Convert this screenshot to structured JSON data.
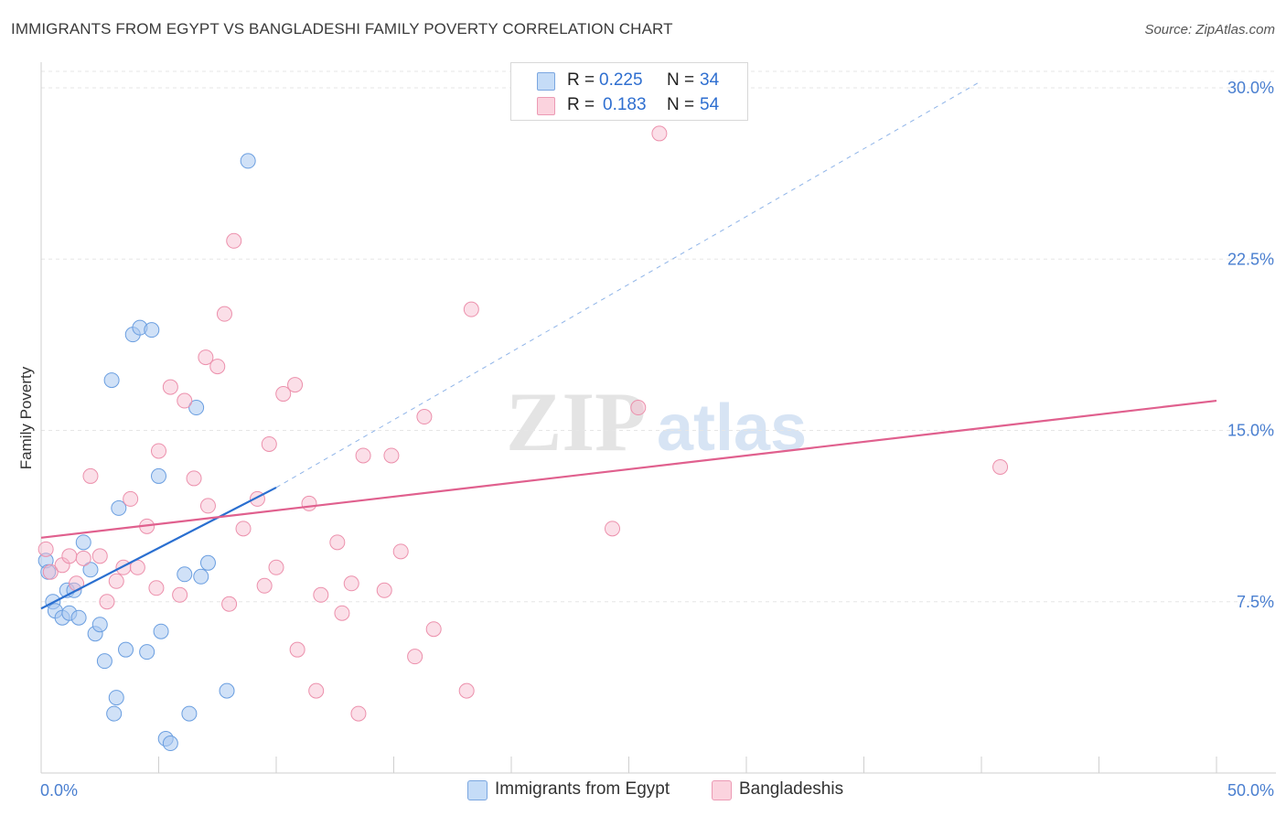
{
  "header": {
    "title": "IMMIGRANTS FROM EGYPT VS BANGLADESHI FAMILY POVERTY CORRELATION CHART",
    "source": "Source: ZipAtlas.com"
  },
  "watermark": {
    "zip": "ZIP",
    "atlas": "atlas"
  },
  "legend": {
    "r_label": "R =",
    "n_label": "N =",
    "rows": [
      {
        "r": "0.225",
        "n": "34",
        "color": "#a9c8f0"
      },
      {
        "r": "0.183",
        "n": "54",
        "color": "#f6b8cb"
      }
    ]
  },
  "chart_data": {
    "type": "scatter",
    "title": "IMMIGRANTS FROM EGYPT VS BANGLADESHI FAMILY POVERTY CORRELATION CHART",
    "xlabel": "",
    "ylabel": "Family Poverty",
    "xlim": [
      0,
      50
    ],
    "ylim": [
      0,
      30
    ],
    "x_tick_labels": [
      "0.0%",
      "50.0%"
    ],
    "y_ticks": [
      7.5,
      15.0,
      22.5,
      30.0
    ],
    "y_tick_labels": [
      "7.5%",
      "15.0%",
      "22.5%",
      "30.0%"
    ],
    "series": [
      {
        "name": "Immigrants from Egypt",
        "color": "#a9c8f0",
        "stroke": "#6a9ee0",
        "line_color": "#2a6fd0",
        "trend": {
          "x": [
            0,
            10
          ],
          "y": [
            7.2,
            12.5
          ],
          "dashed_to": [
            40,
            30.3
          ]
        },
        "points": [
          [
            0.2,
            9.3
          ],
          [
            0.3,
            8.8
          ],
          [
            0.5,
            7.5
          ],
          [
            0.6,
            7.1
          ],
          [
            0.9,
            6.8
          ],
          [
            1.1,
            8.0
          ],
          [
            1.2,
            7.0
          ],
          [
            1.4,
            8.0
          ],
          [
            1.6,
            6.8
          ],
          [
            1.8,
            10.1
          ],
          [
            2.1,
            8.9
          ],
          [
            2.3,
            6.1
          ],
          [
            2.5,
            6.5
          ],
          [
            2.7,
            4.9
          ],
          [
            3.0,
            17.2
          ],
          [
            3.1,
            2.6
          ],
          [
            3.2,
            3.3
          ],
          [
            3.3,
            11.6
          ],
          [
            3.6,
            5.4
          ],
          [
            3.9,
            19.2
          ],
          [
            4.2,
            19.5
          ],
          [
            4.5,
            5.3
          ],
          [
            4.7,
            19.4
          ],
          [
            5.0,
            13.0
          ],
          [
            5.1,
            6.2
          ],
          [
            5.3,
            1.5
          ],
          [
            5.5,
            1.3
          ],
          [
            6.1,
            8.7
          ],
          [
            6.3,
            2.6
          ],
          [
            6.6,
            16.0
          ],
          [
            6.8,
            8.6
          ],
          [
            7.1,
            9.2
          ],
          [
            7.9,
            3.6
          ],
          [
            8.8,
            26.8
          ]
        ]
      },
      {
        "name": "Bangladeshis",
        "color": "#f6b8cb",
        "stroke": "#ec90ac",
        "line_color": "#e0608e",
        "trend": {
          "x": [
            0,
            50
          ],
          "y": [
            10.3,
            16.3
          ]
        },
        "points": [
          [
            0.2,
            9.8
          ],
          [
            0.4,
            8.8
          ],
          [
            0.9,
            9.1
          ],
          [
            1.2,
            9.5
          ],
          [
            1.5,
            8.3
          ],
          [
            1.8,
            9.4
          ],
          [
            2.1,
            13.0
          ],
          [
            2.5,
            9.5
          ],
          [
            2.8,
            7.5
          ],
          [
            3.2,
            8.4
          ],
          [
            3.5,
            9.0
          ],
          [
            3.8,
            12.0
          ],
          [
            4.1,
            9.0
          ],
          [
            4.5,
            10.8
          ],
          [
            4.9,
            8.1
          ],
          [
            5.0,
            14.1
          ],
          [
            5.5,
            16.9
          ],
          [
            5.9,
            7.8
          ],
          [
            6.1,
            16.3
          ],
          [
            6.5,
            12.9
          ],
          [
            7.0,
            18.2
          ],
          [
            7.1,
            11.7
          ],
          [
            7.5,
            17.8
          ],
          [
            7.8,
            20.1
          ],
          [
            8.0,
            7.4
          ],
          [
            8.2,
            23.3
          ],
          [
            8.6,
            10.7
          ],
          [
            9.2,
            12.0
          ],
          [
            9.5,
            8.2
          ],
          [
            9.7,
            14.4
          ],
          [
            10.0,
            9.0
          ],
          [
            10.3,
            16.6
          ],
          [
            10.8,
            17.0
          ],
          [
            10.9,
            5.4
          ],
          [
            11.4,
            11.8
          ],
          [
            11.7,
            3.6
          ],
          [
            11.9,
            7.8
          ],
          [
            12.6,
            10.1
          ],
          [
            12.8,
            7.0
          ],
          [
            13.2,
            8.3
          ],
          [
            13.5,
            2.6
          ],
          [
            13.7,
            13.9
          ],
          [
            14.6,
            8.0
          ],
          [
            14.9,
            13.9
          ],
          [
            15.3,
            9.7
          ],
          [
            15.9,
            5.1
          ],
          [
            16.3,
            15.6
          ],
          [
            16.7,
            6.3
          ],
          [
            18.1,
            3.6
          ],
          [
            18.3,
            20.3
          ],
          [
            24.3,
            10.7
          ],
          [
            25.4,
            16.0
          ],
          [
            26.3,
            28.0
          ],
          [
            40.8,
            13.4
          ]
        ]
      }
    ]
  }
}
